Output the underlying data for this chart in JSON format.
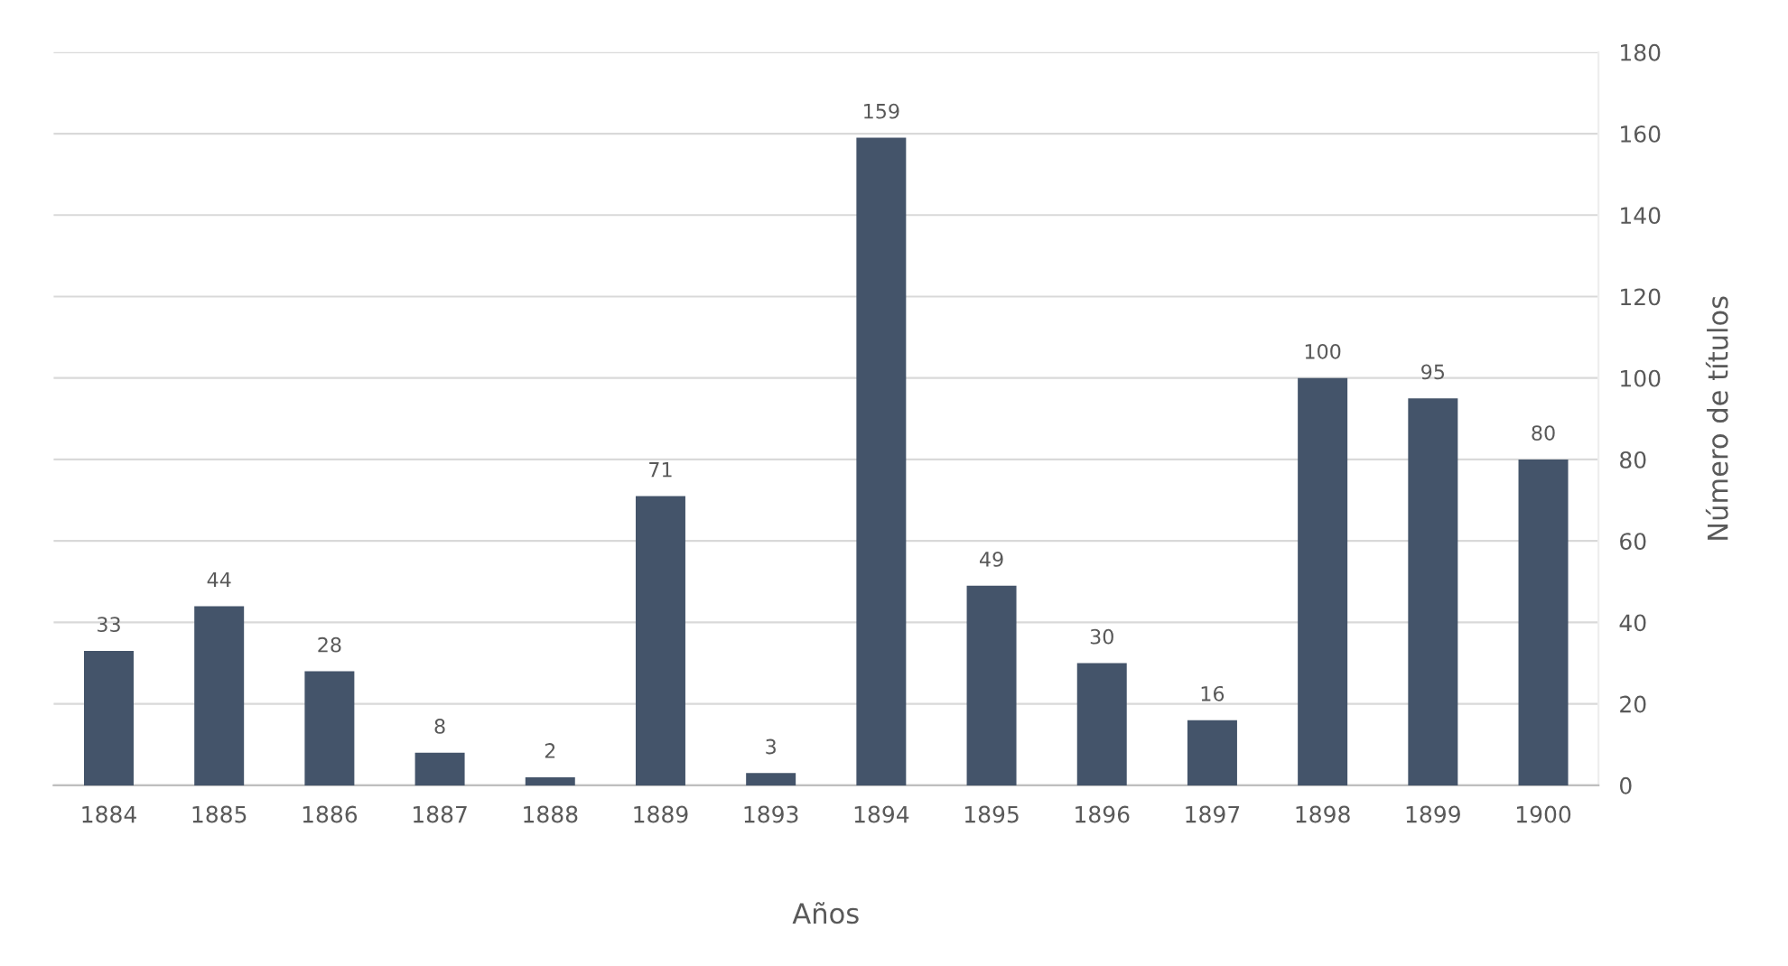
{
  "chart_data": {
    "type": "bar",
    "xlabel": "Años",
    "ylabel": "Número de títulos",
    "categories": [
      "1884",
      "1885",
      "1886",
      "1887",
      "1888",
      "1889",
      "1893",
      "1894",
      "1895",
      "1896",
      "1897",
      "1898",
      "1899",
      "1900"
    ],
    "values": [
      33,
      44,
      28,
      8,
      2,
      71,
      3,
      159,
      49,
      30,
      16,
      100,
      95,
      80
    ],
    "color": "#44546a",
    "ylim": [
      0,
      180
    ],
    "yticks": [
      0,
      20,
      40,
      60,
      80,
      100,
      120,
      140,
      160,
      180
    ],
    "grid": "y",
    "data_labels": true
  }
}
